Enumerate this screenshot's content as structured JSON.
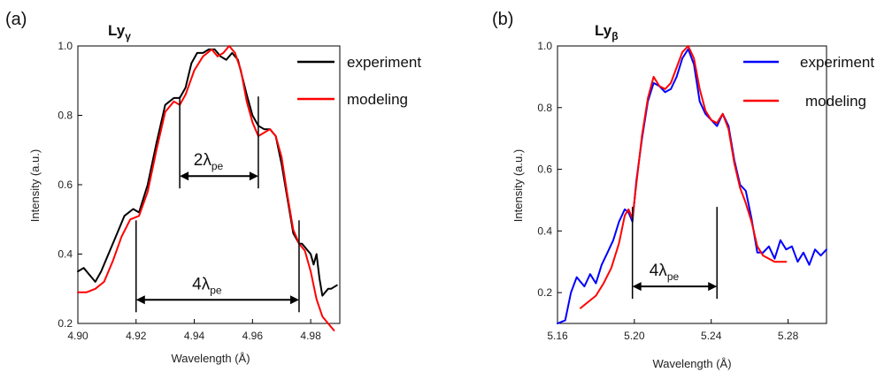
{
  "chart_data": [
    {
      "type": "line",
      "panel_label": "(a)",
      "title": "Ly",
      "title_subscript": "γ",
      "xlabel": "Wavelength (Å)",
      "ylabel": "Intensity (a.u.)",
      "xlim": [
        4.9,
        4.99
      ],
      "ylim": [
        0.2,
        1.0
      ],
      "xticks": [
        "4.90",
        "4.92",
        "4.94",
        "4.96",
        "4.98"
      ],
      "xtick_values": [
        4.9,
        4.92,
        4.94,
        4.96,
        4.98
      ],
      "yticks": [
        "0.2",
        "0.4",
        "0.6",
        "0.8",
        "1.0"
      ],
      "ytick_values": [
        0.2,
        0.4,
        0.6,
        0.8,
        1.0
      ],
      "legend_position": "top-right",
      "series": [
        {
          "name": "experiment",
          "color": "#000000",
          "x": [
            4.9,
            4.902,
            4.904,
            4.906,
            4.908,
            4.91,
            4.913,
            4.916,
            4.919,
            4.921,
            4.924,
            4.927,
            4.93,
            4.933,
            4.935,
            4.937,
            4.939,
            4.941,
            4.943,
            4.945,
            4.947,
            4.949,
            4.951,
            4.953,
            4.955,
            4.958,
            4.96,
            4.962,
            4.964,
            4.966,
            4.968,
            4.97,
            4.972,
            4.974,
            4.976,
            4.977,
            4.978,
            4.98,
            4.981,
            4.982,
            4.983,
            4.984,
            4.986,
            4.987,
            4.989
          ],
          "y": [
            0.35,
            0.36,
            0.34,
            0.32,
            0.35,
            0.39,
            0.45,
            0.51,
            0.53,
            0.52,
            0.6,
            0.72,
            0.83,
            0.85,
            0.85,
            0.88,
            0.95,
            0.98,
            0.98,
            0.99,
            0.99,
            0.97,
            0.96,
            0.98,
            0.96,
            0.86,
            0.8,
            0.77,
            0.76,
            0.76,
            0.74,
            0.66,
            0.56,
            0.46,
            0.43,
            0.43,
            0.42,
            0.4,
            0.37,
            0.4,
            0.33,
            0.28,
            0.3,
            0.3,
            0.31
          ]
        },
        {
          "name": "modeling",
          "color": "#ff0000",
          "x": [
            4.9,
            4.903,
            4.906,
            4.909,
            4.912,
            4.915,
            4.918,
            4.921,
            4.924,
            4.927,
            4.93,
            4.933,
            4.935,
            4.937,
            4.94,
            4.943,
            4.946,
            4.948,
            4.95,
            4.952,
            4.954,
            4.956,
            4.958,
            4.96,
            4.962,
            4.964,
            4.966,
            4.968,
            4.97,
            4.972,
            4.974,
            4.976,
            4.978,
            4.98,
            4.982,
            4.984,
            4.986,
            4.988
          ],
          "y": [
            0.29,
            0.29,
            0.3,
            0.32,
            0.38,
            0.45,
            0.5,
            0.51,
            0.58,
            0.7,
            0.81,
            0.84,
            0.83,
            0.86,
            0.93,
            0.97,
            0.99,
            0.97,
            0.98,
            1.0,
            0.98,
            0.93,
            0.84,
            0.78,
            0.74,
            0.75,
            0.76,
            0.74,
            0.68,
            0.57,
            0.47,
            0.43,
            0.41,
            0.35,
            0.27,
            0.22,
            0.2,
            0.18
          ]
        }
      ],
      "annotations": [
        {
          "text": "2λ",
          "subscript": "pe",
          "x_from": 4.935,
          "x_to": 4.962,
          "y": 0.625
        },
        {
          "text": "4λ",
          "subscript": "pe",
          "x_from": 4.92,
          "x_to": 4.976,
          "y": 0.268
        }
      ]
    },
    {
      "type": "line",
      "panel_label": "(b)",
      "title": "Ly",
      "title_subscript": "β",
      "xlabel": "Wavelength (Å)",
      "ylabel": "Intensity (a.u.)",
      "xlim": [
        5.16,
        5.3
      ],
      "ylim": [
        0.1,
        1.0
      ],
      "xticks": [
        "5.16",
        "5.20",
        "5.24",
        "5.28"
      ],
      "xtick_values": [
        5.16,
        5.2,
        5.24,
        5.28
      ],
      "yticks": [
        "0.2",
        "0.4",
        "0.6",
        "0.8",
        "1.0"
      ],
      "ytick_values": [
        0.2,
        0.4,
        0.6,
        0.8,
        1.0
      ],
      "legend_position": "top-right",
      "series": [
        {
          "name": "experiment",
          "color": "#0000ff",
          "x": [
            5.16,
            5.164,
            5.167,
            5.17,
            5.174,
            5.177,
            5.18,
            5.183,
            5.186,
            5.189,
            5.192,
            5.195,
            5.197,
            5.199,
            5.201,
            5.204,
            5.207,
            5.21,
            5.213,
            5.216,
            5.219,
            5.222,
            5.225,
            5.228,
            5.231,
            5.234,
            5.237,
            5.24,
            5.243,
            5.246,
            5.249,
            5.252,
            5.255,
            5.258,
            5.261,
            5.264,
            5.267,
            5.27,
            5.273,
            5.276,
            5.279,
            5.282,
            5.285,
            5.288,
            5.291,
            5.294,
            5.297,
            5.3
          ],
          "y": [
            0.1,
            0.11,
            0.2,
            0.25,
            0.22,
            0.26,
            0.23,
            0.29,
            0.33,
            0.37,
            0.43,
            0.47,
            0.46,
            0.43,
            0.56,
            0.7,
            0.82,
            0.88,
            0.87,
            0.85,
            0.86,
            0.9,
            0.96,
            0.99,
            0.94,
            0.82,
            0.78,
            0.76,
            0.74,
            0.78,
            0.74,
            0.63,
            0.55,
            0.53,
            0.44,
            0.33,
            0.33,
            0.35,
            0.31,
            0.37,
            0.34,
            0.35,
            0.3,
            0.33,
            0.29,
            0.34,
            0.32,
            0.34
          ]
        },
        {
          "name": "modeling",
          "color": "#ff0000",
          "x": [
            5.172,
            5.176,
            5.18,
            5.184,
            5.188,
            5.192,
            5.195,
            5.197,
            5.199,
            5.201,
            5.204,
            5.207,
            5.21,
            5.213,
            5.216,
            5.219,
            5.222,
            5.225,
            5.228,
            5.231,
            5.234,
            5.237,
            5.24,
            5.243,
            5.246,
            5.249,
            5.252,
            5.255,
            5.258,
            5.261,
            5.264,
            5.267,
            5.27,
            5.273,
            5.276,
            5.279
          ],
          "y": [
            0.15,
            0.17,
            0.19,
            0.23,
            0.28,
            0.36,
            0.45,
            0.47,
            0.44,
            0.55,
            0.71,
            0.83,
            0.9,
            0.87,
            0.86,
            0.88,
            0.93,
            0.98,
            1.0,
            0.96,
            0.86,
            0.79,
            0.76,
            0.75,
            0.78,
            0.73,
            0.62,
            0.54,
            0.49,
            0.43,
            0.35,
            0.32,
            0.31,
            0.3,
            0.3,
            0.3
          ]
        }
      ],
      "annotations": [
        {
          "text": "4λ",
          "subscript": "pe",
          "x_from": 5.199,
          "x_to": 5.243,
          "y": 0.22
        }
      ]
    }
  ]
}
